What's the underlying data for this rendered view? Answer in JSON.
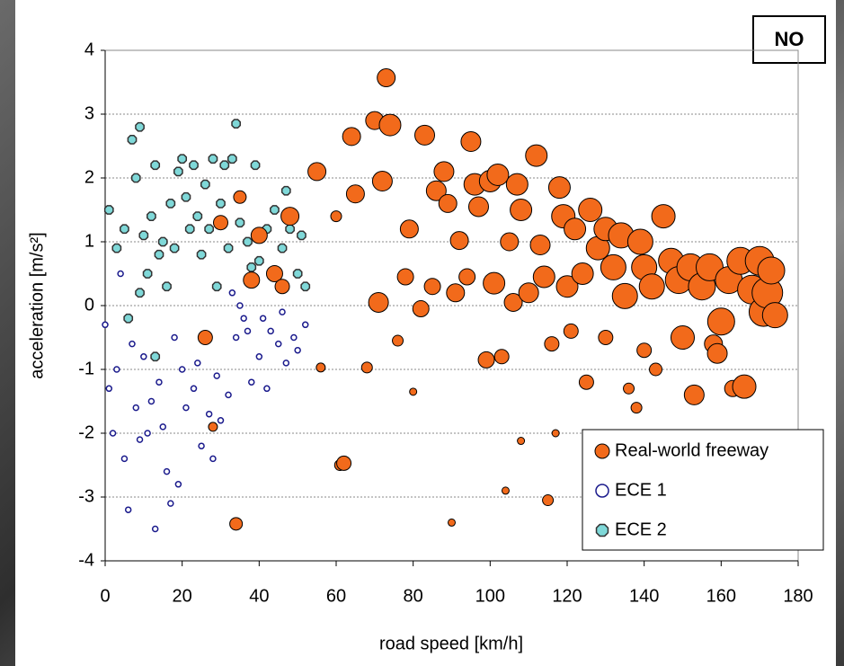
{
  "chart_data": {
    "type": "scatter",
    "x_label": "road speed [km/h]",
    "y_label": "acceleration [m/s²]",
    "annotation": "NO",
    "xlim": [
      0,
      180
    ],
    "xticks": [
      0,
      20,
      40,
      60,
      80,
      100,
      120,
      140,
      160,
      180
    ],
    "ylim": [
      -4,
      4
    ],
    "yticks": [
      -4,
      -3,
      -2,
      -1,
      0,
      1,
      2,
      3,
      4
    ],
    "grid": true,
    "legend": "lower right",
    "series": [
      {
        "name": "Real-world freeway",
        "color": "#f26a1b",
        "marker": "circle",
        "x": [
          34,
          55,
          56,
          60,
          61,
          62,
          64,
          65,
          68,
          70,
          71,
          72,
          73,
          74,
          76,
          78,
          79,
          82,
          83,
          85,
          86,
          88,
          89,
          91,
          92,
          94,
          95,
          96,
          97,
          99,
          100,
          101,
          102,
          103,
          105,
          106,
          107,
          108,
          110,
          112,
          113,
          114,
          115,
          116,
          118,
          119,
          120,
          121,
          122,
          124,
          125,
          126,
          128,
          130,
          130,
          132,
          134,
          135,
          136,
          138,
          139,
          140,
          140,
          142,
          143,
          145,
          147,
          149,
          150,
          152,
          153,
          155,
          157,
          158,
          159,
          160,
          162,
          163,
          165,
          166,
          168,
          170,
          171,
          172,
          173,
          174,
          44,
          46,
          30,
          35,
          38,
          40,
          48,
          26,
          28,
          80,
          90,
          104,
          117,
          108
        ],
        "values": [
          -3.42,
          2.1,
          -0.97,
          1.4,
          -2.5,
          -2.47,
          2.65,
          1.75,
          -0.97,
          2.9,
          0.05,
          1.95,
          3.57,
          2.83,
          -0.55,
          0.45,
          1.2,
          -0.05,
          2.67,
          0.3,
          1.8,
          2.1,
          1.6,
          0.2,
          1.02,
          0.45,
          2.57,
          1.9,
          1.55,
          -0.85,
          1.95,
          0.35,
          2.05,
          -0.8,
          1.0,
          0.05,
          1.9,
          1.5,
          0.2,
          2.35,
          0.95,
          0.45,
          -3.05,
          -0.6,
          1.85,
          1.4,
          0.3,
          -0.4,
          1.2,
          0.5,
          -1.2,
          1.5,
          0.9,
          -0.5,
          1.2,
          0.6,
          1.1,
          0.15,
          -1.3,
          -1.6,
          1.0,
          0.6,
          -0.7,
          0.3,
          -1.0,
          1.4,
          0.7,
          0.4,
          -0.5,
          0.6,
          -1.4,
          0.3,
          0.6,
          -0.6,
          -0.75,
          -0.25,
          0.4,
          -1.3,
          0.7,
          -1.27,
          0.25,
          0.7,
          -0.1,
          0.2,
          0.55,
          -0.15,
          0.5,
          0.3,
          1.3,
          1.7,
          0.4,
          1.1,
          1.4,
          -0.5,
          -1.9,
          -1.35,
          -3.4,
          -2.9,
          -2.0,
          -2.12
        ],
        "sizes": [
          7,
          10,
          5,
          6,
          6,
          8,
          10,
          10,
          6,
          10,
          11,
          11,
          10,
          12,
          6,
          9,
          10,
          9,
          11,
          9,
          11,
          11,
          10,
          10,
          10,
          9,
          11,
          12,
          11,
          9,
          12,
          12,
          12,
          8,
          10,
          10,
          12,
          12,
          11,
          12,
          11,
          12,
          6,
          8,
          12,
          13,
          12,
          8,
          12,
          12,
          8,
          13,
          13,
          8,
          13,
          14,
          14,
          14,
          6,
          6,
          14,
          14,
          8,
          14,
          7,
          13,
          14,
          15,
          13,
          15,
          11,
          15,
          15,
          10,
          11,
          15,
          15,
          9,
          15,
          13,
          16,
          16,
          16,
          17,
          15,
          14,
          9,
          8,
          8,
          7,
          9,
          9,
          10,
          8,
          5,
          4,
          4,
          4,
          4,
          4
        ]
      },
      {
        "name": "ECE 1",
        "color": "#1a1a8c",
        "marker": "circle",
        "x": [
          0,
          1,
          2,
          3,
          4,
          5,
          6,
          8,
          9,
          10,
          12,
          13,
          14,
          16,
          17,
          18,
          20,
          21,
          23,
          25,
          27,
          29,
          30,
          32,
          34,
          36,
          38,
          40,
          42,
          43,
          45,
          47,
          49,
          50,
          52,
          33,
          35,
          37,
          24,
          19,
          11,
          7,
          15,
          28,
          41,
          46
        ],
        "values": [
          -0.3,
          -1.3,
          -2.0,
          -1.0,
          0.5,
          -2.4,
          -3.2,
          -1.6,
          -2.1,
          -0.8,
          -1.5,
          -3.5,
          -1.2,
          -2.6,
          -3.1,
          -0.5,
          -1.0,
          -1.6,
          -1.3,
          -2.2,
          -1.7,
          -1.1,
          -1.8,
          -1.4,
          -0.5,
          -0.2,
          -1.2,
          -0.8,
          -1.3,
          -0.4,
          -0.6,
          -0.9,
          -0.5,
          -0.7,
          -0.3,
          0.2,
          0.0,
          -0.4,
          -0.9,
          -2.8,
          -2.0,
          -0.6,
          -1.9,
          -2.4,
          -0.2,
          -0.1
        ]
      },
      {
        "name": "ECE 2",
        "color": "#7fd8d8",
        "marker": "octagon",
        "x": [
          1,
          3,
          5,
          7,
          8,
          9,
          10,
          11,
          12,
          13,
          14,
          15,
          16,
          17,
          18,
          19,
          20,
          21,
          22,
          23,
          24,
          25,
          26,
          27,
          28,
          30,
          31,
          32,
          33,
          34,
          35,
          37,
          39,
          40,
          42,
          44,
          46,
          47,
          48,
          50,
          51,
          52,
          13,
          6,
          9,
          29,
          38
        ],
        "values": [
          1.5,
          0.9,
          1.2,
          2.6,
          2.0,
          2.8,
          1.1,
          0.5,
          1.4,
          2.2,
          0.8,
          1.0,
          0.3,
          1.6,
          0.9,
          2.1,
          2.3,
          1.7,
          1.2,
          2.2,
          1.4,
          0.8,
          1.9,
          1.2,
          2.3,
          1.6,
          2.2,
          0.9,
          2.3,
          2.85,
          1.3,
          1.0,
          2.2,
          0.7,
          1.2,
          1.5,
          0.9,
          1.8,
          1.2,
          0.5,
          1.1,
          0.3,
          -0.8,
          -0.2,
          0.2,
          0.3,
          0.6
        ]
      }
    ]
  }
}
